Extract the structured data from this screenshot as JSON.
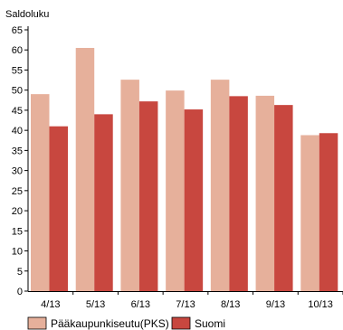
{
  "chart_data": {
    "type": "bar",
    "title": "",
    "xlabel": "",
    "ylabel": "Saldoluku",
    "ylim": [
      0,
      65
    ],
    "yticks": [
      0,
      5,
      10,
      15,
      20,
      25,
      30,
      35,
      40,
      45,
      50,
      55,
      60,
      65
    ],
    "grid": false,
    "legend_position": "bottom-left",
    "categories": [
      "4/13",
      "5/13",
      "6/13",
      "7/13",
      "8/13",
      "9/13",
      "10/13"
    ],
    "series": [
      {
        "name": "Pääkaupunkiseutu(PKS)",
        "color": "#e6b09b",
        "values": [
          49,
          60.5,
          52.6,
          49.9,
          52.6,
          48.6,
          38.8
        ]
      },
      {
        "name": "Suomi",
        "color": "#c8473f",
        "values": [
          41,
          44,
          47.2,
          45.2,
          48.5,
          46.3,
          39.3
        ]
      }
    ]
  }
}
